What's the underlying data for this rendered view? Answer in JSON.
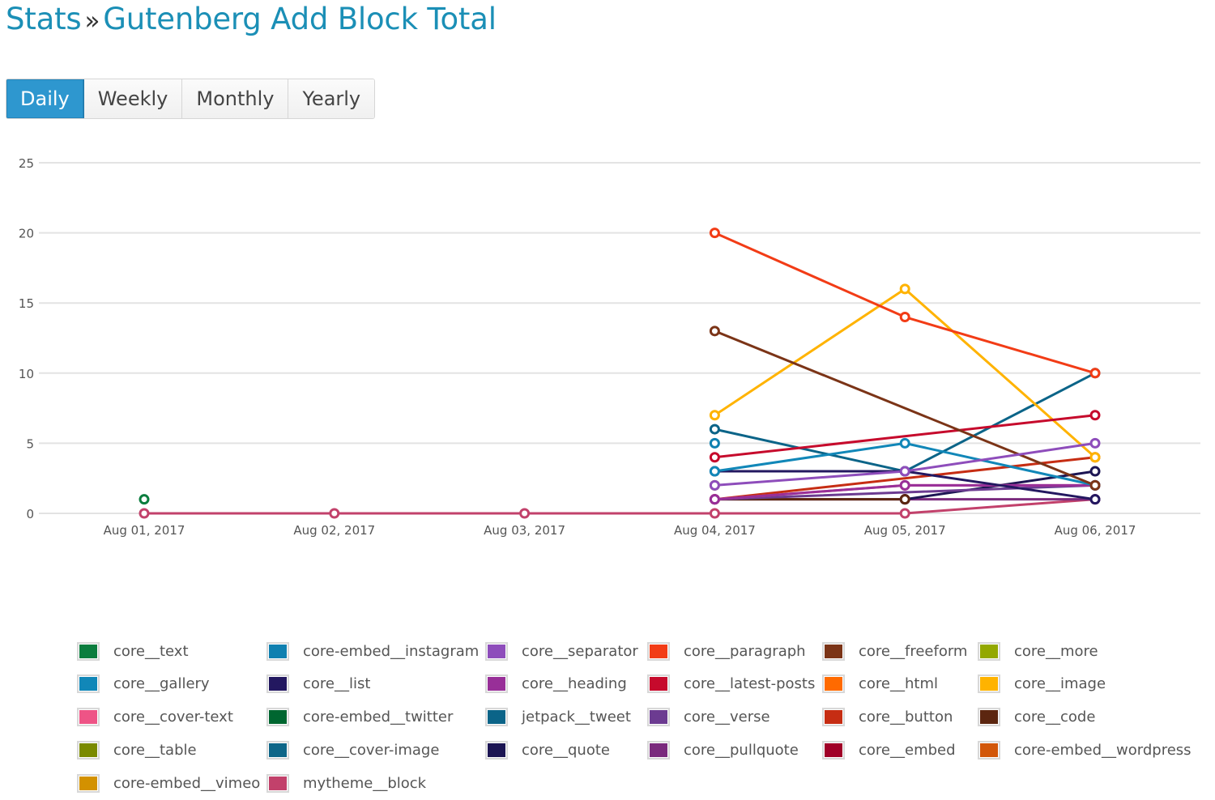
{
  "header": {
    "breadcrumb_root": "Stats",
    "separator": "»",
    "page_title": "Gutenberg Add Block Total"
  },
  "period_tabs": [
    {
      "label": "Daily",
      "active": true
    },
    {
      "label": "Weekly",
      "active": false
    },
    {
      "label": "Monthly",
      "active": false
    },
    {
      "label": "Yearly",
      "active": false
    }
  ],
  "chart_data": {
    "type": "line",
    "title": "Gutenberg Add Block Total",
    "xlabel": "",
    "ylabel": "",
    "x": [
      "Aug 01, 2017",
      "Aug 02, 2017",
      "Aug 03, 2017",
      "Aug 04, 2017",
      "Aug 05, 2017",
      "Aug 06, 2017"
    ],
    "yticks": [
      0,
      5,
      10,
      15,
      20,
      25
    ],
    "ylim": [
      0,
      25
    ],
    "grid": true,
    "legend_position": "bottom",
    "series": [
      {
        "name": "core__text",
        "color": "#0b7d3e",
        "values": [
          1,
          null,
          null,
          null,
          null,
          null
        ]
      },
      {
        "name": "core-embed__instagram",
        "color": "#0f80b0",
        "values": [
          null,
          null,
          null,
          5,
          null,
          null
        ]
      },
      {
        "name": "core__separator",
        "color": "#8e4dbb",
        "values": [
          null,
          null,
          null,
          2,
          3,
          5
        ]
      },
      {
        "name": "core__paragraph",
        "color": "#f23c16",
        "values": [
          null,
          null,
          null,
          20,
          14,
          10
        ]
      },
      {
        "name": "core__freeform",
        "color": "#7b3417",
        "values": [
          null,
          null,
          null,
          13,
          null,
          2
        ]
      },
      {
        "name": "core__more",
        "color": "#93a800",
        "values": [
          null,
          null,
          null,
          2,
          null,
          null
        ]
      },
      {
        "name": "core__gallery",
        "color": "#1187b8",
        "values": [
          null,
          null,
          null,
          3,
          5,
          2
        ]
      },
      {
        "name": "core__list",
        "color": "#231860",
        "values": [
          null,
          null,
          null,
          3,
          3,
          1
        ]
      },
      {
        "name": "core__heading",
        "color": "#982f98",
        "values": [
          null,
          null,
          null,
          1,
          2,
          2
        ]
      },
      {
        "name": "core__latest-posts",
        "color": "#c60a2c",
        "values": [
          null,
          null,
          null,
          4,
          null,
          7
        ]
      },
      {
        "name": "core__html",
        "color": "#ff6a00",
        "values": [
          null,
          null,
          null,
          null,
          null,
          null
        ]
      },
      {
        "name": "core__image",
        "color": "#ffb300",
        "values": [
          null,
          null,
          null,
          7,
          16,
          4
        ]
      },
      {
        "name": "core__cover-text",
        "color": "#ee5486",
        "values": [
          null,
          null,
          null,
          1,
          2,
          2
        ]
      },
      {
        "name": "core-embed__twitter",
        "color": "#006630",
        "values": [
          null,
          null,
          null,
          null,
          null,
          null
        ]
      },
      {
        "name": "jetpack__tweet",
        "color": "#0b6488",
        "values": [
          null,
          null,
          null,
          6,
          3,
          10
        ]
      },
      {
        "name": "core__verse",
        "color": "#6c3b91",
        "values": [
          null,
          null,
          null,
          1,
          1.5,
          2
        ]
      },
      {
        "name": "core__button",
        "color": "#c62d13",
        "values": [
          null,
          null,
          null,
          1,
          null,
          4
        ]
      },
      {
        "name": "core__code",
        "color": "#5c2610",
        "values": [
          null,
          null,
          null,
          1,
          1,
          null
        ]
      },
      {
        "name": "core__table",
        "color": "#7a8a00",
        "values": [
          null,
          null,
          null,
          null,
          null,
          null
        ]
      },
      {
        "name": "core__cover-image",
        "color": "#0e6688",
        "values": [
          null,
          null,
          null,
          null,
          null,
          null
        ]
      },
      {
        "name": "core__quote",
        "color": "#1c1553",
        "values": [
          null,
          null,
          null,
          null,
          1,
          3
        ]
      },
      {
        "name": "core__pullquote",
        "color": "#7a2a7d",
        "values": [
          null,
          null,
          null,
          1,
          1,
          1
        ]
      },
      {
        "name": "core__embed",
        "color": "#a00028",
        "values": [
          null,
          null,
          null,
          null,
          1,
          null
        ]
      },
      {
        "name": "core-embed__wordpress",
        "color": "#d2570a",
        "values": [
          null,
          null,
          null,
          null,
          null,
          null
        ]
      },
      {
        "name": "core-embed__vimeo",
        "color": "#d39100",
        "values": [
          null,
          null,
          null,
          null,
          null,
          null
        ]
      },
      {
        "name": "mytheme__block",
        "color": "#c2416b",
        "values": [
          0,
          0,
          0,
          0,
          0,
          1
        ]
      }
    ]
  }
}
